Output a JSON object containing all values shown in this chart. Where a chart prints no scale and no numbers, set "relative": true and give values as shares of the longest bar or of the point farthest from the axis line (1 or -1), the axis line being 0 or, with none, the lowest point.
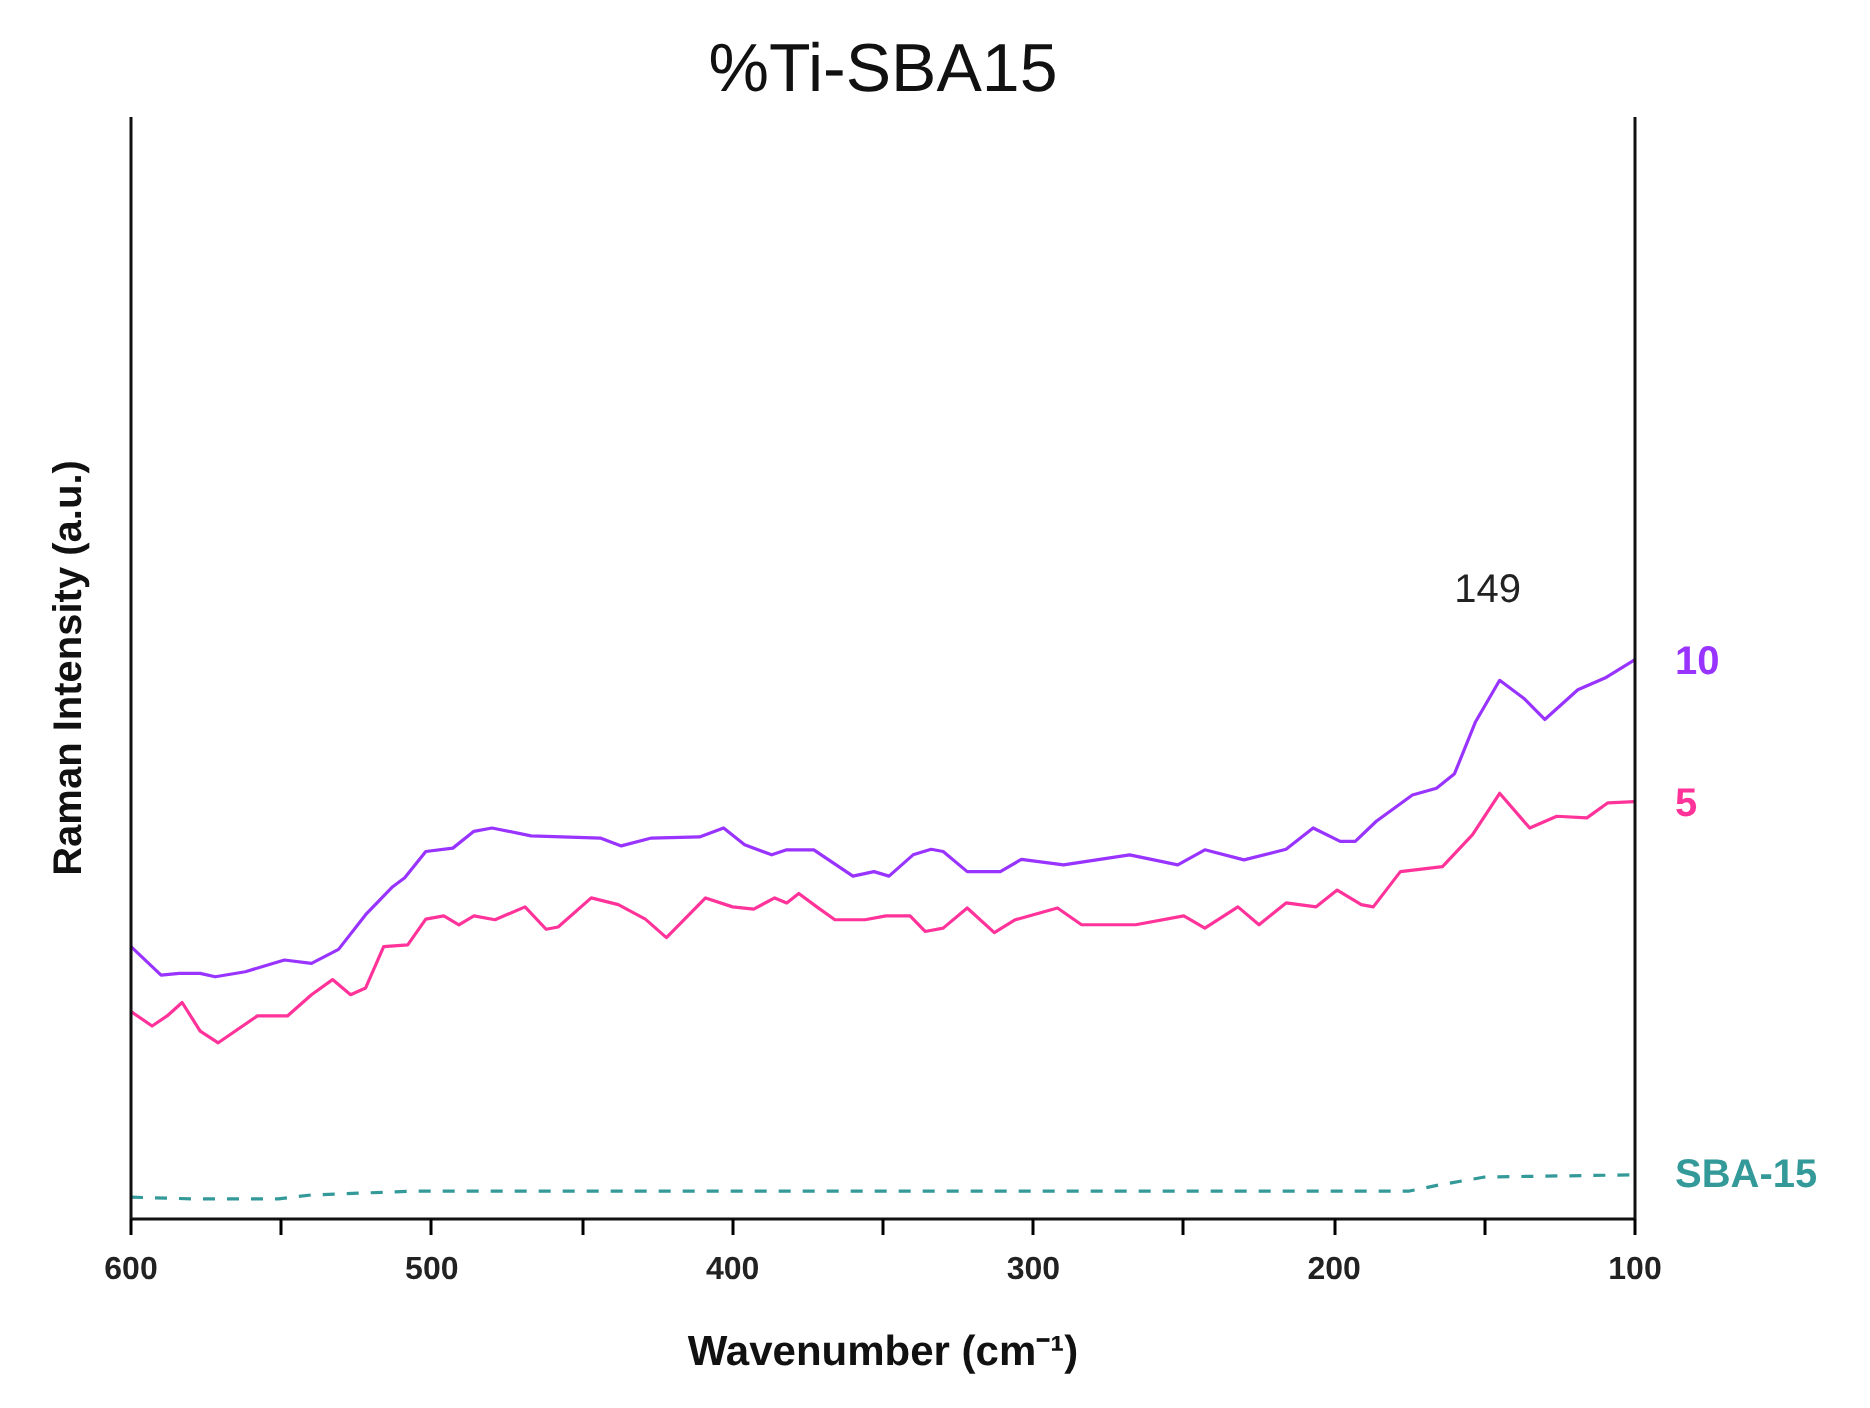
{
  "chart_data": {
    "type": "line",
    "title": "%Ti-SBA15",
    "xlabel": "Wavenumber (cm⁻¹)",
    "ylabel": "Raman Intensity (a.u.)",
    "relative": true,
    "xlim": [
      600,
      100
    ],
    "xticks": [
      600,
      500,
      400,
      300,
      200,
      100
    ],
    "tick_labels": "x",
    "grid": false,
    "legend": false,
    "line_style": "solid",
    "annotations": [
      {
        "text": "149",
        "x": 149,
        "y": 0.96
      }
    ],
    "series": [
      {
        "name": "10",
        "color": "#9933ff",
        "x": [
          600,
          590,
          584,
          577,
          572,
          562,
          549,
          540,
          531,
          522,
          513,
          509,
          502,
          493,
          486,
          480,
          467,
          444,
          437,
          427,
          411,
          403,
          396,
          387,
          382,
          373,
          360,
          353,
          348,
          340,
          334,
          330,
          322,
          311,
          304,
          290,
          268,
          252,
          243,
          230,
          216,
          207,
          198,
          193,
          186,
          174,
          166,
          160,
          153,
          145,
          137,
          130,
          119,
          110,
          100
        ],
        "values": [
          0.487,
          0.436,
          0.439,
          0.439,
          0.433,
          0.442,
          0.463,
          0.457,
          0.482,
          0.544,
          0.594,
          0.61,
          0.657,
          0.663,
          0.693,
          0.699,
          0.685,
          0.681,
          0.667,
          0.681,
          0.683,
          0.699,
          0.669,
          0.651,
          0.66,
          0.66,
          0.613,
          0.621,
          0.613,
          0.651,
          0.661,
          0.657,
          0.621,
          0.621,
          0.643,
          0.633,
          0.651,
          0.633,
          0.66,
          0.642,
          0.661,
          0.699,
          0.675,
          0.675,
          0.711,
          0.758,
          0.77,
          0.796,
          0.889,
          0.963,
          0.931,
          0.893,
          0.946,
          0.967,
          1.0
        ]
      },
      {
        "name": "5",
        "color": "#ff3399",
        "x": [
          600,
          593,
          588,
          583,
          577,
          571,
          558,
          548,
          540,
          533,
          527,
          522,
          516,
          508,
          502,
          496,
          491,
          486,
          479,
          469,
          462,
          458,
          447,
          438,
          429,
          422,
          409,
          400,
          393,
          386,
          382,
          378,
          372,
          366,
          356,
          349,
          341,
          336,
          330,
          322,
          313,
          306,
          292,
          284,
          266,
          250,
          243,
          232,
          225,
          216,
          206,
          199,
          191,
          187,
          178,
          164,
          154,
          145,
          135,
          126,
          116,
          109,
          100
        ],
        "values": [
          0.371,
          0.345,
          0.363,
          0.387,
          0.336,
          0.315,
          0.363,
          0.363,
          0.401,
          0.428,
          0.401,
          0.413,
          0.487,
          0.49,
          0.536,
          0.542,
          0.526,
          0.542,
          0.535,
          0.558,
          0.518,
          0.522,
          0.574,
          0.562,
          0.536,
          0.503,
          0.574,
          0.558,
          0.554,
          0.574,
          0.565,
          0.582,
          0.558,
          0.535,
          0.535,
          0.542,
          0.542,
          0.514,
          0.52,
          0.556,
          0.512,
          0.535,
          0.556,
          0.526,
          0.526,
          0.542,
          0.52,
          0.558,
          0.526,
          0.565,
          0.558,
          0.588,
          0.562,
          0.558,
          0.621,
          0.63,
          0.687,
          0.761,
          0.699,
          0.72,
          0.717,
          0.744,
          0.746
        ]
      },
      {
        "name": "SBA-15",
        "color": "#339999",
        "line_style": "dashed",
        "x": [
          600,
          580,
          551,
          540,
          505,
          480,
          404,
          300,
          200,
          175,
          165,
          150,
          100
        ],
        "values": [
          0.039,
          0.036,
          0.036,
          0.043,
          0.05,
          0.05,
          0.05,
          0.05,
          0.05,
          0.05,
          0.061,
          0.075,
          0.079
        ]
      }
    ]
  }
}
